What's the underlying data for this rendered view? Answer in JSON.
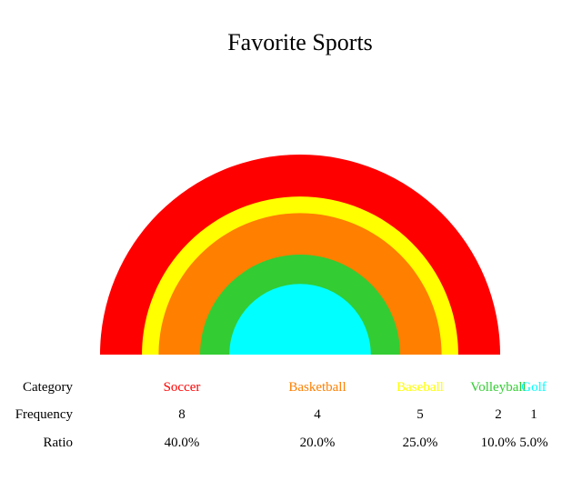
{
  "chart_data": {
    "type": "semicircle-area-concentric",
    "title": "Favorite Sports",
    "row_labels": {
      "category": "Category",
      "frequency": "Frequency",
      "ratio": "Ratio"
    },
    "categories": [
      "Soccer",
      "Basketball",
      "Baseball",
      "Volleyball",
      "Golf"
    ],
    "values": [
      8,
      4,
      5,
      2,
      1
    ],
    "ratios": [
      "40.0%",
      "20.0%",
      "25.0%",
      "10.0%",
      "5.0%"
    ],
    "colors": [
      "#ff0000",
      "#ff7f00",
      "#ffff00",
      "#33cc33",
      "#00ffff"
    ],
    "legend": "table below chart"
  }
}
